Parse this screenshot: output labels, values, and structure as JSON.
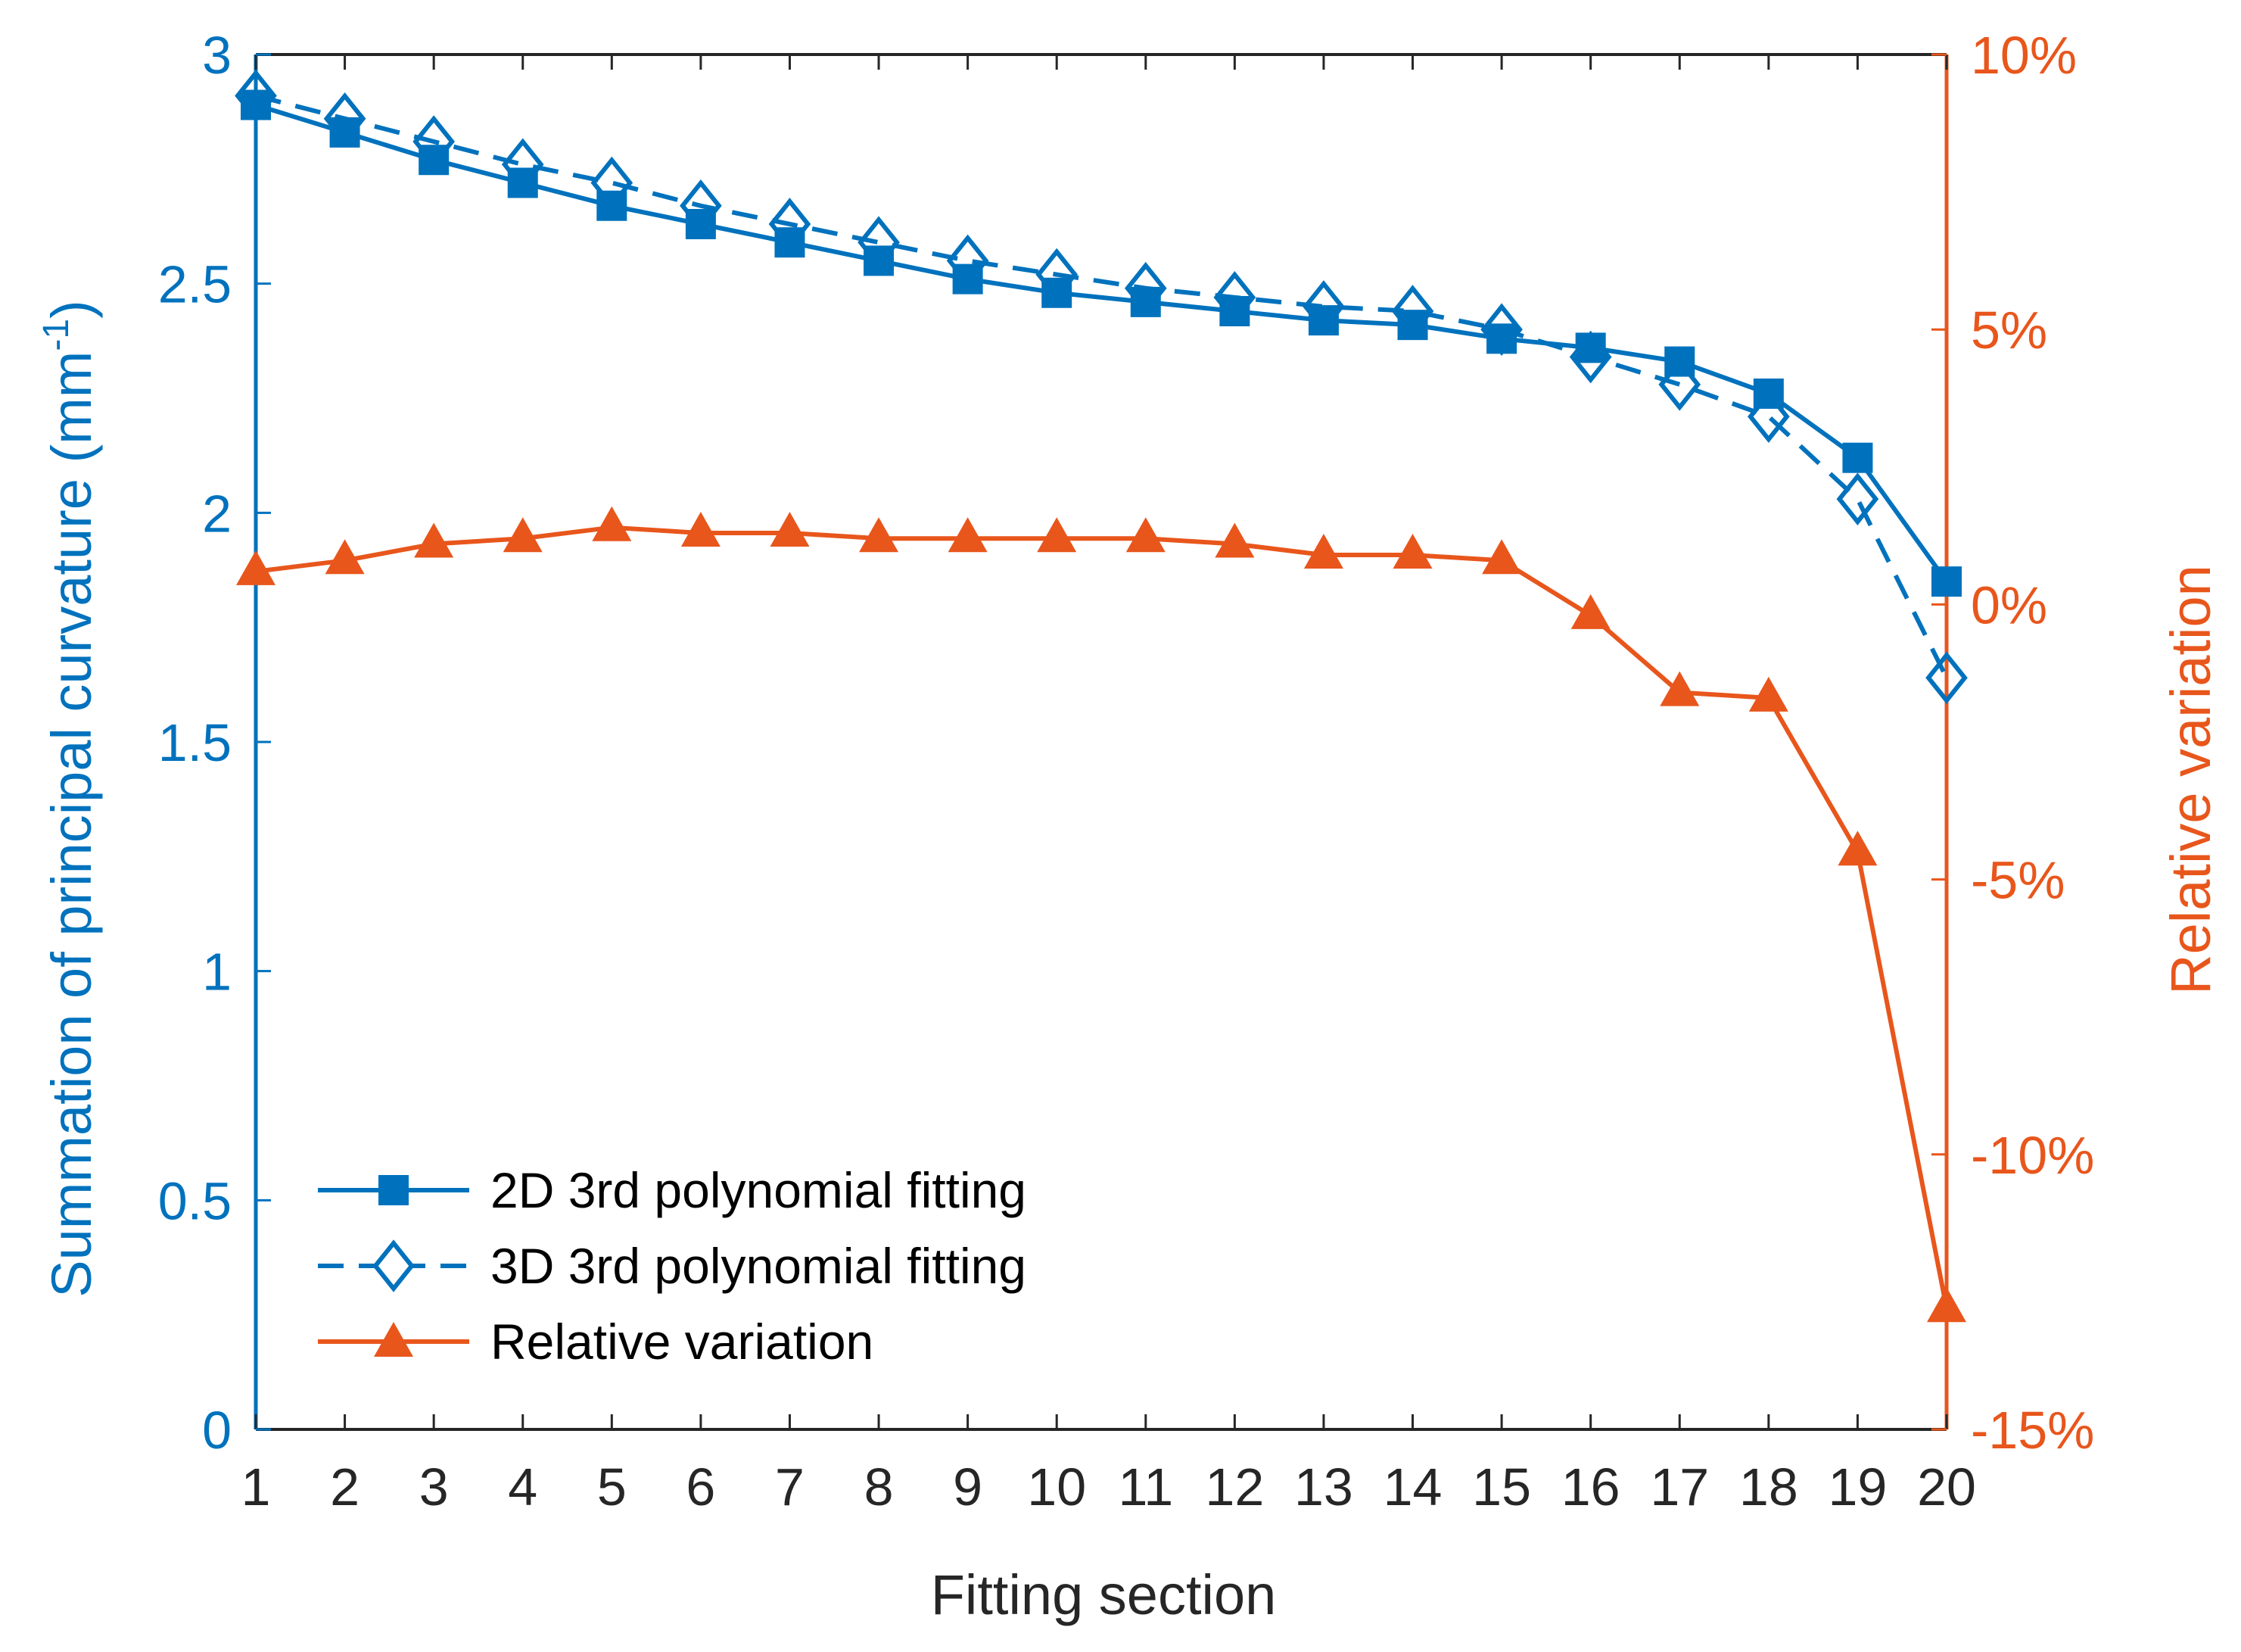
{
  "chart_data": {
    "type": "line",
    "xlabel": "Fitting section",
    "ylabel_left": "Summation of principal curvature (mm",
    "ylabel_left_sup": "-1",
    "ylabel_left_close": ")",
    "ylabel_right": "Relative variation",
    "x": [
      1,
      2,
      3,
      4,
      5,
      6,
      7,
      8,
      9,
      10,
      11,
      12,
      13,
      14,
      15,
      16,
      17,
      18,
      19,
      20
    ],
    "x_tick_labels": [
      "1",
      "2",
      "3",
      "4",
      "5",
      "6",
      "7",
      "8",
      "9",
      "10",
      "11",
      "12",
      "13",
      "14",
      "15",
      "16",
      "17",
      "18",
      "19",
      "20"
    ],
    "xlim": [
      1,
      20
    ],
    "ylim_left": [
      0,
      3
    ],
    "yticks_left": [
      0,
      0.5,
      1,
      1.5,
      2,
      2.5,
      3
    ],
    "ytick_labels_left": [
      "0",
      "0.5",
      "1",
      "1.5",
      "2",
      "2.5",
      "3"
    ],
    "ylim_right": [
      -15,
      10
    ],
    "yticks_right": [
      -15,
      -10,
      -5,
      0,
      5,
      10
    ],
    "ytick_labels_right": [
      "-15%",
      "-10%",
      "-5%",
      "0%",
      "5%",
      "10%"
    ],
    "series": [
      {
        "name": "2D 3rd polynomial fitting",
        "axis": "left",
        "color": "#0072BD",
        "line": "solid",
        "marker": "square",
        "values": [
          2.89,
          2.83,
          2.77,
          2.72,
          2.67,
          2.63,
          2.59,
          2.55,
          2.51,
          2.48,
          2.46,
          2.44,
          2.42,
          2.41,
          2.38,
          2.36,
          2.33,
          2.26,
          2.12,
          1.85
        ]
      },
      {
        "name": "3D 3rd polynomial fitting",
        "axis": "left",
        "color": "#0072BD",
        "line": "dashed",
        "marker": "diamond",
        "values": [
          2.91,
          2.86,
          2.81,
          2.76,
          2.72,
          2.67,
          2.63,
          2.59,
          2.55,
          2.52,
          2.49,
          2.47,
          2.45,
          2.44,
          2.4,
          2.34,
          2.28,
          2.21,
          2.03,
          1.64
        ]
      },
      {
        "name": "Relative variation",
        "axis": "right",
        "color": "#E8561C",
        "line": "solid",
        "marker": "triangle",
        "values": [
          0.6,
          0.8,
          1.1,
          1.2,
          1.4,
          1.3,
          1.3,
          1.2,
          1.2,
          1.2,
          1.2,
          1.1,
          0.9,
          0.9,
          0.8,
          -0.2,
          -1.6,
          -1.7,
          -4.5,
          -12.8
        ]
      }
    ],
    "legend_position": "bottom-left"
  }
}
